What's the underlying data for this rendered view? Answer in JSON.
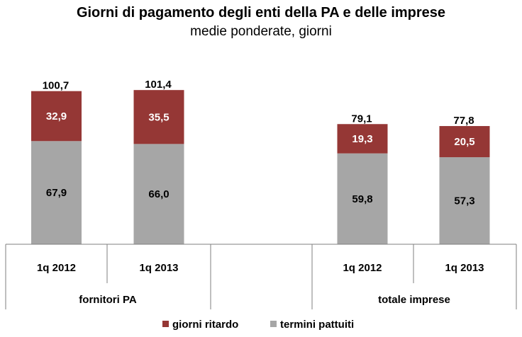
{
  "chart_data": {
    "type": "bar",
    "stacked": true,
    "title": "Giorni di pagamento degli enti della PA e delle imprese",
    "subtitle": "medie ponderate, giorni",
    "groups": [
      {
        "name": "fornitori PA",
        "categories": [
          "1q 2012",
          "1q 2013"
        ],
        "totals": [
          "100,7",
          "101,4"
        ]
      },
      {
        "name": "totale imprese",
        "categories": [
          "1q 2012",
          "1q 2013"
        ],
        "totals": [
          "79,1",
          "77,8"
        ]
      }
    ],
    "series": [
      {
        "name": "termini pattuiti",
        "color": "#a6a6a6",
        "values": [
          67.9,
          66.0,
          59.8,
          57.3
        ],
        "labels": [
          "67,9",
          "66,0",
          "59,8",
          "57,3"
        ]
      },
      {
        "name": "giorni ritardo",
        "color": "#953735",
        "values": [
          32.9,
          35.5,
          19.3,
          20.5
        ],
        "labels": [
          "32,9",
          "35,5",
          "19,3",
          "20,5"
        ]
      }
    ],
    "legend_order": [
      "giorni ritardo",
      "termini pattuiti"
    ],
    "legend_position": "bottom",
    "ylim": [
      0,
      130
    ],
    "grid": false
  }
}
